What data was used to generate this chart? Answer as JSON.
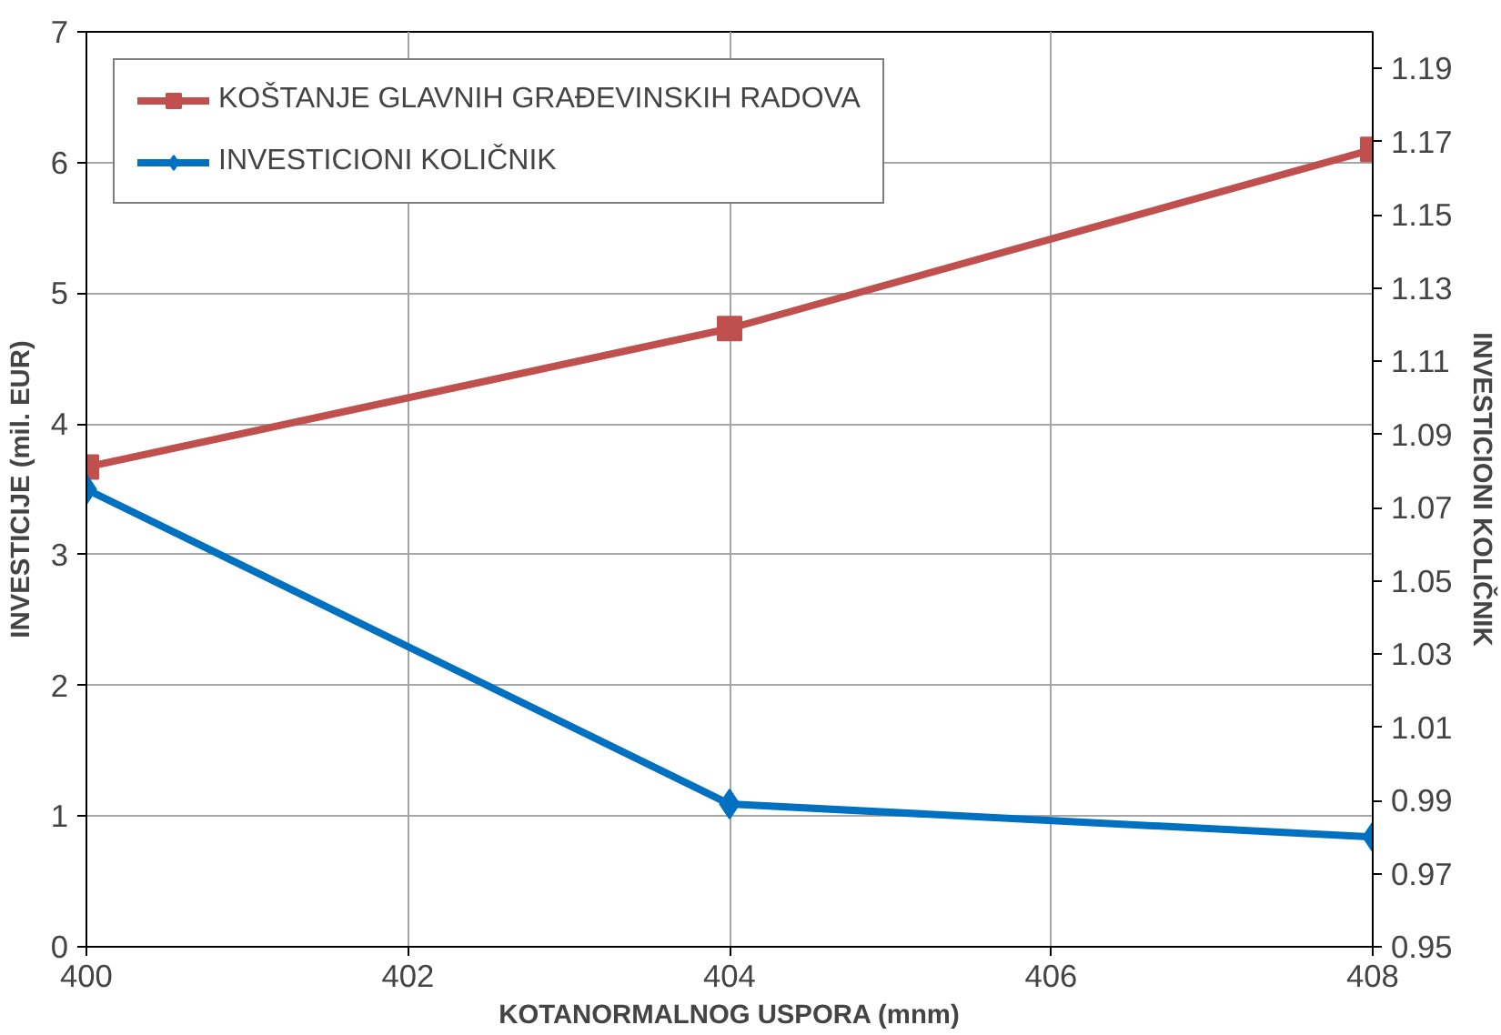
{
  "chart_data": {
    "type": "line",
    "xlabel": "KOTANORMALNOG USPORA (mnm)",
    "ylabel": "INVESTICIJE (mil. EUR)",
    "y2label": "INVESTICIONI KOLIČNIK",
    "x": [
      400,
      404,
      408
    ],
    "series": [
      {
        "name": "KOŠTANJE GLAVNIH GRAĐEVINSKIH RADOVA",
        "color": "#c0504d",
        "marker": "square",
        "values": [
          3.67,
          4.73,
          6.1
        ]
      },
      {
        "name": "INVESTICIONI KOLIČNIK",
        "color": "#0070c0",
        "marker": "diamond",
        "axis": "y2",
        "values": [
          1.075,
          0.989,
          0.98
        ]
      }
    ],
    "xlim": [
      400,
      408
    ],
    "xticks": [
      400,
      402,
      404,
      406,
      408
    ],
    "ylim": [
      0,
      7
    ],
    "yticks": [
      0,
      1,
      2,
      3,
      4,
      5,
      6,
      7
    ],
    "y2lim": [
      0.95,
      1.2
    ],
    "y2ticks": [
      {
        "value": 0.95,
        "label": "0.95"
      },
      {
        "value": 0.97,
        "label": "0.97"
      },
      {
        "value": 0.99,
        "label": "0.99"
      },
      {
        "value": 1.01,
        "label": "1.01"
      },
      {
        "value": 1.03,
        "label": "1.03"
      },
      {
        "value": 1.05,
        "label": "1.05"
      },
      {
        "value": 1.07,
        "label": "1.07"
      },
      {
        "value": 1.09,
        "label": "1.09"
      },
      {
        "value": 1.11,
        "label": "1.11"
      },
      {
        "value": 1.13,
        "label": "1.13"
      },
      {
        "value": 1.15,
        "label": "1.15"
      },
      {
        "value": 1.17,
        "label": "1.17"
      },
      {
        "value": 1.19,
        "label": "1.19"
      }
    ],
    "grid": true,
    "legend": "top left",
    "line_style": "solid"
  }
}
